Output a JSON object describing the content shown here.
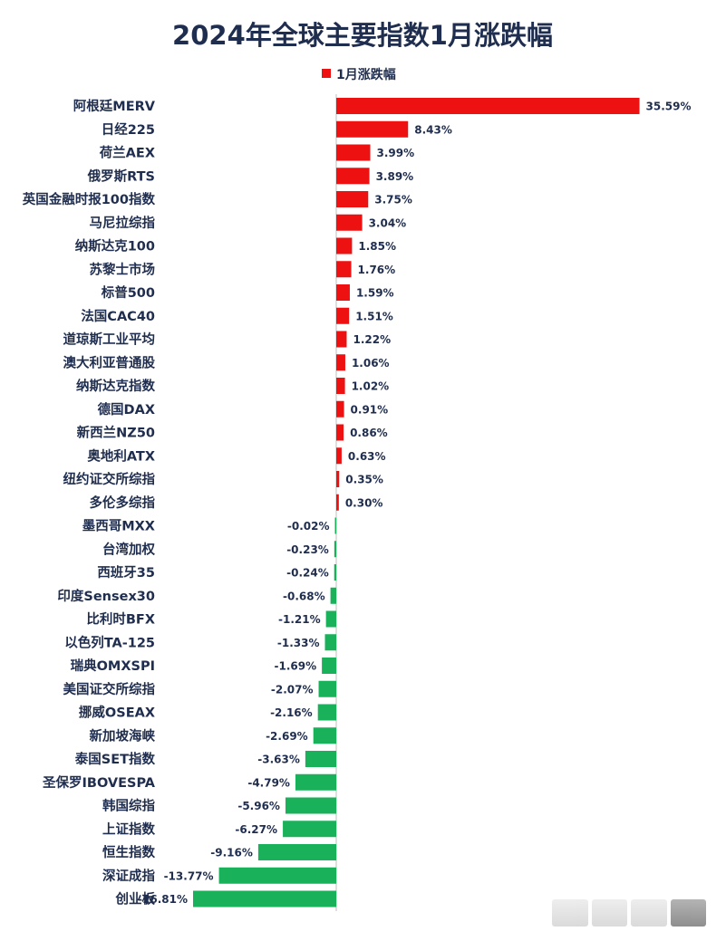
{
  "chart_data": {
    "type": "bar",
    "orientation": "horizontal",
    "title": "2024年全球主要指数1月涨跌幅",
    "legend": {
      "position": "top",
      "entries": [
        "1月涨跌幅"
      ]
    },
    "colors": {
      "positive": "#ee1111",
      "negative": "#19b15a",
      "text": "#1f2d4e",
      "axis": "#bfbfbf"
    },
    "grid": false,
    "xlim": [
      -28,
      58
    ],
    "series": [
      {
        "name": "1月涨跌幅",
        "data": [
          {
            "category": "阿根廷MERV",
            "value": 35.59,
            "label": "35.59%"
          },
          {
            "category": "日经225",
            "value": 8.43,
            "label": "8.43%"
          },
          {
            "category": "荷兰AEX",
            "value": 3.99,
            "label": "3.99%"
          },
          {
            "category": "俄罗斯RTS",
            "value": 3.89,
            "label": "3.89%"
          },
          {
            "category": "英国金融时报100指数",
            "value": 3.75,
            "label": "3.75%"
          },
          {
            "category": "马尼拉综指",
            "value": 3.04,
            "label": "3.04%"
          },
          {
            "category": "纳斯达克100",
            "value": 1.85,
            "label": "1.85%"
          },
          {
            "category": "苏黎士市场",
            "value": 1.76,
            "label": "1.76%"
          },
          {
            "category": "标普500",
            "value": 1.59,
            "label": "1.59%"
          },
          {
            "category": "法国CAC40",
            "value": 1.51,
            "label": "1.51%"
          },
          {
            "category": "道琼斯工业平均",
            "value": 1.22,
            "label": "1.22%"
          },
          {
            "category": "澳大利亚普通股",
            "value": 1.06,
            "label": "1.06%"
          },
          {
            "category": "纳斯达克指数",
            "value": 1.02,
            "label": "1.02%"
          },
          {
            "category": "德国DAX",
            "value": 0.91,
            "label": "0.91%"
          },
          {
            "category": "新西兰NZ50",
            "value": 0.86,
            "label": "0.86%"
          },
          {
            "category": "奥地利ATX",
            "value": 0.63,
            "label": "0.63%"
          },
          {
            "category": "纽约证交所综指",
            "value": 0.35,
            "label": "0.35%"
          },
          {
            "category": "多伦多综指",
            "value": 0.3,
            "label": "0.30%"
          },
          {
            "category": "墨西哥MXX",
            "value": -0.02,
            "label": "-0.02%"
          },
          {
            "category": "台湾加权",
            "value": -0.23,
            "label": "-0.23%"
          },
          {
            "category": "西班牙35",
            "value": -0.24,
            "label": "-0.24%"
          },
          {
            "category": "印度Sensex30",
            "value": -0.68,
            "label": "-0.68%"
          },
          {
            "category": "比利时BFX",
            "value": -1.21,
            "label": "-1.21%"
          },
          {
            "category": "以色列TA-125",
            "value": -1.33,
            "label": "-1.33%"
          },
          {
            "category": "瑞典OMXSPI",
            "value": -1.69,
            "label": "-1.69%"
          },
          {
            "category": "美国证交所综指",
            "value": -2.07,
            "label": "-2.07%"
          },
          {
            "category": "挪威OSEAX",
            "value": -2.16,
            "label": "-2.16%"
          },
          {
            "category": "新加坡海峡",
            "value": -2.69,
            "label": "-2.69%"
          },
          {
            "category": "泰国SET指数",
            "value": -3.63,
            "label": "-3.63%"
          },
          {
            "category": "圣保罗IBOVESPA",
            "value": -4.79,
            "label": "-4.79%"
          },
          {
            "category": "韩国综指",
            "value": -5.96,
            "label": "-5.96%"
          },
          {
            "category": "上证指数",
            "value": -6.27,
            "label": "-6.27%"
          },
          {
            "category": "恒生指数",
            "value": -9.16,
            "label": "-9.16%"
          },
          {
            "category": "深证成指",
            "value": -13.77,
            "label": "-13.77%"
          },
          {
            "category": "创业板",
            "value": -16.81,
            "label": "-16.81%"
          }
        ]
      }
    ]
  }
}
